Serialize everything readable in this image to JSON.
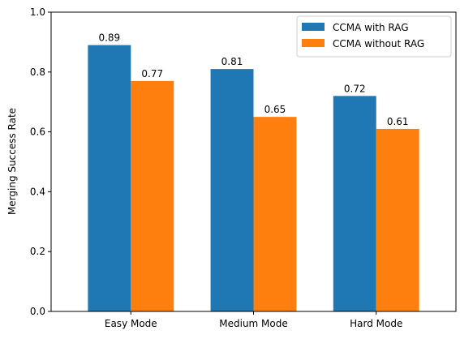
{
  "chart_data": {
    "type": "bar",
    "title": "",
    "xlabel": "",
    "ylabel": "Merging Success Rate",
    "ylim": [
      0,
      1.0
    ],
    "yticks": [
      "0.0",
      "0.2",
      "0.4",
      "0.6",
      "0.8",
      "1.0"
    ],
    "categories": [
      "Easy Mode",
      "Medium Mode",
      "Hard Mode"
    ],
    "series": [
      {
        "name": "CCMA with RAG",
        "color": "#1f77b4",
        "values": [
          0.89,
          0.81,
          0.72
        ],
        "labels": [
          "0.89",
          "0.81",
          "0.72"
        ]
      },
      {
        "name": "CCMA without RAG",
        "color": "#ff7f0e",
        "values": [
          0.77,
          0.65,
          0.61
        ],
        "labels": [
          "0.77",
          "0.65",
          "0.61"
        ]
      }
    ],
    "legend_position": "top-right",
    "grid": false
  }
}
